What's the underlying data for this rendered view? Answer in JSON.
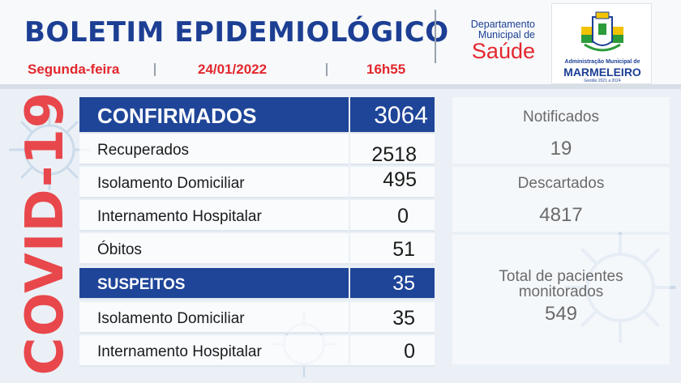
{
  "header": {
    "title": "BOLETIM EPIDEMIOLÓGICO",
    "weekday": "Segunda-feira",
    "date": "24/01/2022",
    "time": "16h55",
    "dept_line1": "Departamento",
    "dept_line2": "Municipal de",
    "dept_saude": "Saúde",
    "logo_line1": "Administração Municipal de",
    "logo_line2": "MARMELEIRO",
    "logo_line3": "Gestão 2021 a 2024"
  },
  "side_label": "COVID-19",
  "confirmados": {
    "label": "CONFIRMADOS",
    "value": "3064",
    "rows": [
      {
        "label": "Recuperados",
        "value": "2518"
      },
      {
        "label": "Isolamento Domiciliar",
        "value": "495"
      },
      {
        "label": "Internamento Hospitalar",
        "value": "0"
      },
      {
        "label": "Óbitos",
        "value": "51"
      }
    ]
  },
  "suspeitos": {
    "label": "SUSPEITOS",
    "value": "35",
    "rows": [
      {
        "label": "Isolamento Domiciliar",
        "value": "35"
      },
      {
        "label": "Internamento Hospitalar",
        "value": "0"
      }
    ]
  },
  "right_panel": {
    "notificados_label": "Notificados",
    "notificados_value": "19",
    "descartados_label": "Descartados",
    "descartados_value": "4817",
    "monitorados_label_1": "Total de pacientes",
    "monitorados_label_2": "monitorados",
    "monitorados_value": "549"
  },
  "colors": {
    "brand_blue": "#1f4598",
    "alert_red": "#e3272d",
    "text_gray": "#6a6a6a"
  }
}
